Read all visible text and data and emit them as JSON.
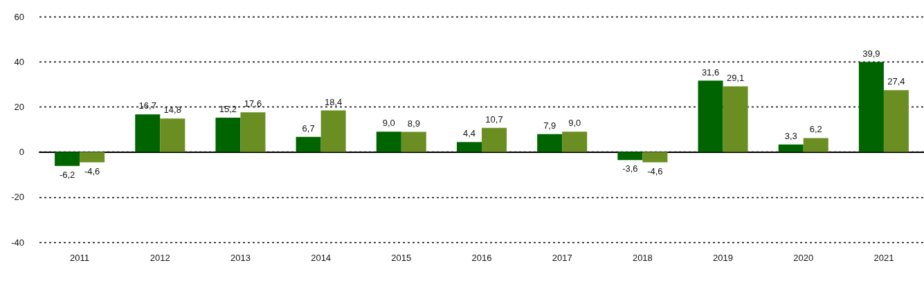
{
  "chart_data": {
    "type": "bar",
    "categories": [
      "2011",
      "2012",
      "2013",
      "2014",
      "2015",
      "2016",
      "2017",
      "2018",
      "2019",
      "2020",
      "2021"
    ],
    "series": [
      {
        "color": "#006400",
        "values": [
          -6.2,
          16.7,
          15.2,
          6.7,
          9.0,
          4.4,
          7.9,
          -3.6,
          31.6,
          3.3,
          39.9
        ],
        "value_labels": [
          "-6,2",
          "16,7",
          "15,2",
          "6,7",
          "9,0",
          "4,4",
          "7,9",
          "-3,6",
          "31,6",
          "3,3",
          "39,9"
        ]
      },
      {
        "color": "#6b8e23",
        "values": [
          -4.6,
          14.8,
          17.6,
          18.4,
          8.9,
          10.7,
          9.0,
          -4.6,
          29.1,
          6.2,
          27.4
        ],
        "value_labels": [
          "-4,6",
          "14,8",
          "17,6",
          "18,4",
          "8,9",
          "10,7",
          "9,0",
          "-4,6",
          "29,1",
          "6,2",
          "27,4"
        ]
      }
    ],
    "ylim": [
      -40,
      60
    ],
    "yticks": [
      -40,
      -20,
      0,
      20,
      40,
      60
    ],
    "grid": "y"
  }
}
